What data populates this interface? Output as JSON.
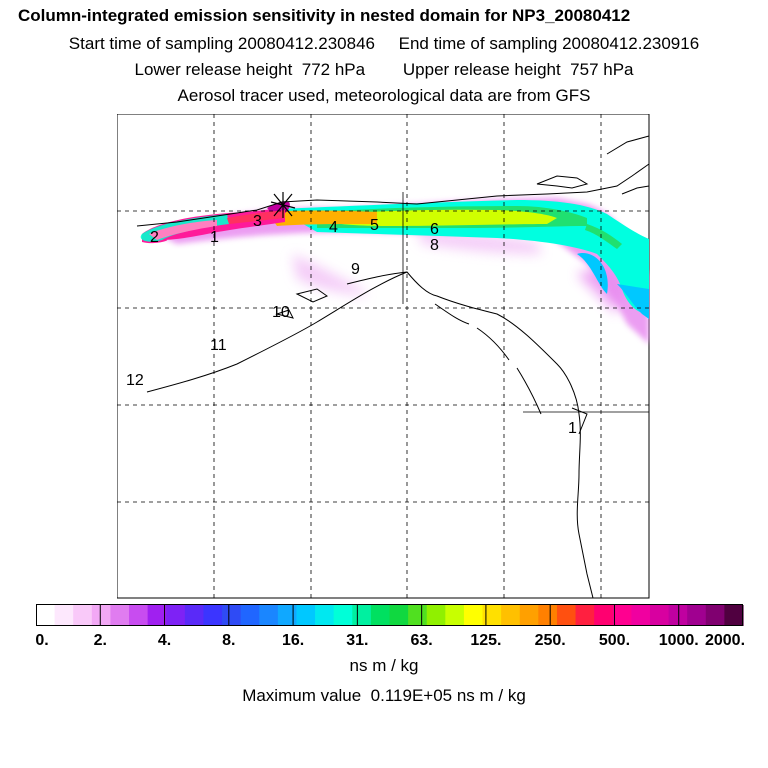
{
  "header": {
    "title": "Column-integrated emission sensitivity in nested domain for NP3_20080412",
    "sampling_line": "Start time of sampling 20080412.230846     End time of sampling 20080412.230916",
    "release_line": "Lower release height  772 hPa        Upper release height  757 hPa",
    "tracer_line": "Aerosol tracer used, meteorological data are from GFS"
  },
  "map": {
    "day_labels": [
      "1",
      "2",
      "3",
      "4",
      "5",
      "6",
      "8",
      "9",
      "10",
      "11",
      "12",
      "1"
    ],
    "release_marker": "release-point-star-icon"
  },
  "colorbar": {
    "tick_labels": [
      "0.",
      "2.",
      "4.",
      "8.",
      "16.",
      "31.",
      "63.",
      "125.",
      "250.",
      "500.",
      "1000.",
      "2000."
    ],
    "colors": [
      "#ffffff",
      "#fde8fd",
      "#f9c9f9",
      "#f2a8f5",
      "#e07cf0",
      "#c84cf0",
      "#a020f0",
      "#7e22f5",
      "#5a2af8",
      "#3b35ff",
      "#2f4bf5",
      "#2066ff",
      "#1a86ff",
      "#10a8ff",
      "#00c8ff",
      "#00e8f0",
      "#00ffd8",
      "#00f0a0",
      "#00e060",
      "#10d840",
      "#50e020",
      "#90f000",
      "#c8ff00",
      "#ffff00",
      "#ffe000",
      "#ffc000",
      "#ffa000",
      "#ff8000",
      "#ff5010",
      "#ff2040",
      "#ff0070",
      "#ff0090",
      "#f000a0",
      "#d800a0",
      "#c000a0",
      "#a00090",
      "#800070",
      "#500040"
    ],
    "units": "ns m / kg",
    "maximum_text": "Maximum value  0.119E+05 ns m / kg"
  }
}
